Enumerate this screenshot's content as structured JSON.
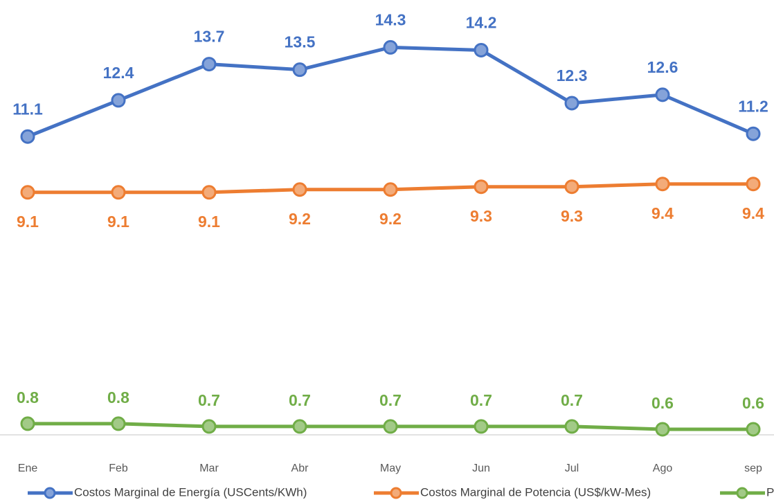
{
  "chart_data": {
    "type": "line",
    "categories": [
      "Ene",
      "Feb",
      "Mar",
      "Abr",
      "May",
      "Jun",
      "Jul",
      "Ago",
      "sep"
    ],
    "series": [
      {
        "name": "Costos Marginal de Energía (USCents/KWh)",
        "color": "#4472c4",
        "values": [
          11.1,
          12.4,
          13.7,
          13.5,
          14.3,
          14.2,
          12.3,
          12.6,
          11.2
        ]
      },
      {
        "name": "Costos Marginal de Potencia  (US$/kW-Mes)",
        "color": "#ed7d31",
        "values": [
          9.1,
          9.1,
          9.1,
          9.2,
          9.2,
          9.3,
          9.3,
          9.4,
          9.4
        ]
      },
      {
        "name": "Pea",
        "color": "#70ad47",
        "values": [
          0.8,
          0.8,
          0.7,
          0.7,
          0.7,
          0.7,
          0.7,
          0.6,
          0.6
        ]
      }
    ],
    "ylim": [
      0.4,
      16
    ],
    "grid": false,
    "legend": "bottom"
  }
}
